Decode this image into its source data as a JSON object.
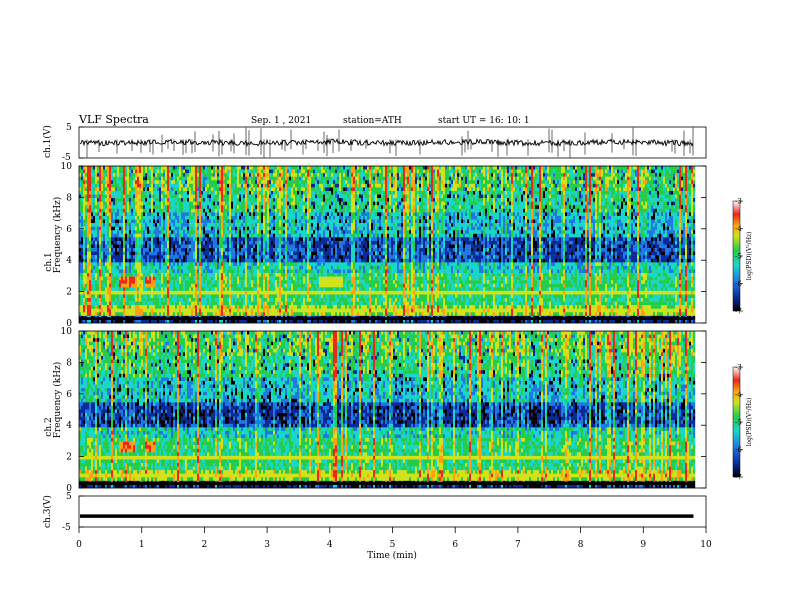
{
  "header": {
    "title": "VLF  Spectra",
    "date": "Sep. 1  , 2021",
    "station": "station=ATH",
    "start": "start  UT  =    16: 10: 1"
  },
  "chart_data": [
    {
      "type": "line",
      "panel": "ch1-voltage",
      "ylabel": "ch.1(V)",
      "yticks": [
        "5",
        "-5"
      ],
      "ylim": [
        -5,
        5
      ],
      "xlim": [
        0,
        10
      ],
      "description_level": "noisy trace near 0 V with frequent negative spikes",
      "data_end_min": 9.8
    },
    {
      "type": "heatmap",
      "panel": "ch1-spectrogram",
      "ylabel_line1": "ch.1",
      "ylabel_line2": "Frequency  (kHz)",
      "yticks": [
        "0",
        "2",
        "4",
        "6",
        "8",
        "10"
      ],
      "ylim": [
        0,
        10
      ],
      "xlim": [
        0,
        10
      ],
      "colorbar": {
        "label": "log(PSD)(V²/Hz)",
        "ticks": [
          "-3",
          "-4",
          "-5",
          "-6",
          "-7"
        ],
        "range": [
          -7,
          -3
        ]
      }
    },
    {
      "type": "heatmap",
      "panel": "ch2-spectrogram",
      "ylabel_line1": "ch.2",
      "ylabel_line2": "Frequency  (kHz)",
      "yticks": [
        "0",
        "2",
        "4",
        "6",
        "8",
        "10"
      ],
      "ylim": [
        0,
        10
      ],
      "xlim": [
        0,
        10
      ],
      "colorbar": {
        "label": "log(PSD)(V²/Hz)",
        "ticks": [
          "-3",
          "-4",
          "-5",
          "-6",
          "-7"
        ],
        "range": [
          -7,
          -3
        ]
      }
    },
    {
      "type": "line",
      "panel": "ch3-voltage",
      "ylabel": "ch.3(V)",
      "yticks": [
        "5",
        "-5"
      ],
      "ylim": [
        -5,
        5
      ],
      "xlim": [
        0,
        10
      ],
      "constant_level_v": -1.5,
      "data_end_min": 9.8
    }
  ],
  "xaxis": {
    "label": "Time  (min)",
    "ticks": [
      "0",
      "1",
      "2",
      "3",
      "4",
      "5",
      "6",
      "7",
      "8",
      "9",
      "10"
    ]
  },
  "colors": {
    "spectrogram_scale": [
      "#000000",
      "#0a2a9a",
      "#1f78e0",
      "#19d6c8",
      "#25cc4a",
      "#cfe21c",
      "#ff9f12",
      "#e8281a",
      "#ffffff"
    ],
    "trace": "#000000"
  }
}
